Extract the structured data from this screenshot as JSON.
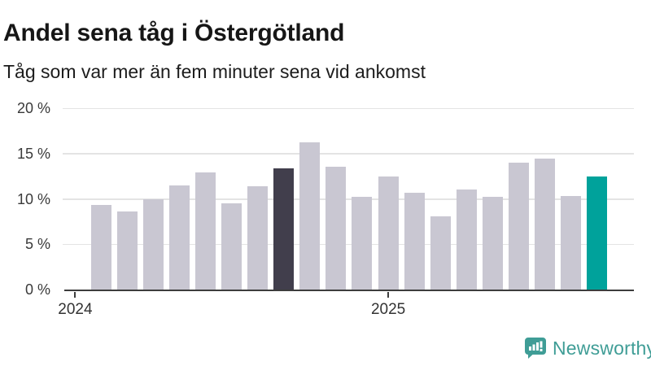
{
  "chart_data": {
    "type": "bar",
    "title": "Andel sena tåg i Östergötland",
    "subtitle": "Tåg som var mer än fem minuter sena vid ankomst",
    "unit": "%",
    "ylim": [
      0,
      20
    ],
    "grid": true,
    "values": [
      9.3,
      8.6,
      10.0,
      11.5,
      12.9,
      9.5,
      11.4,
      13.4,
      16.2,
      13.5,
      10.2,
      12.5,
      10.7,
      8.1,
      11.0,
      10.2,
      14.0,
      14.4,
      10.3,
      12.5
    ],
    "y_ticks": [
      {
        "label": "20 %",
        "value": 20
      },
      {
        "label": "15 %",
        "value": 15
      },
      {
        "label": "10 %",
        "value": 10
      },
      {
        "label": "5 %",
        "value": 5
      },
      {
        "label": "0 %",
        "value": 0
      }
    ],
    "x_ticks": [
      {
        "label": "2024",
        "bar_index": -1
      },
      {
        "label": "2025",
        "bar_index": 11
      }
    ],
    "highlight": {
      "dark_bar_index": 7,
      "teal_bar_index": 19
    },
    "legend": "none"
  },
  "colors": {
    "bar_default": "#c9c7d2",
    "bar_dark": "#413e4c",
    "bar_teal": "#00a29b",
    "axis": "#3d3d3d",
    "gridline": "#e4e4e4",
    "logo": "#3f9d96"
  },
  "footer": {
    "brand": "Newsworthy"
  }
}
